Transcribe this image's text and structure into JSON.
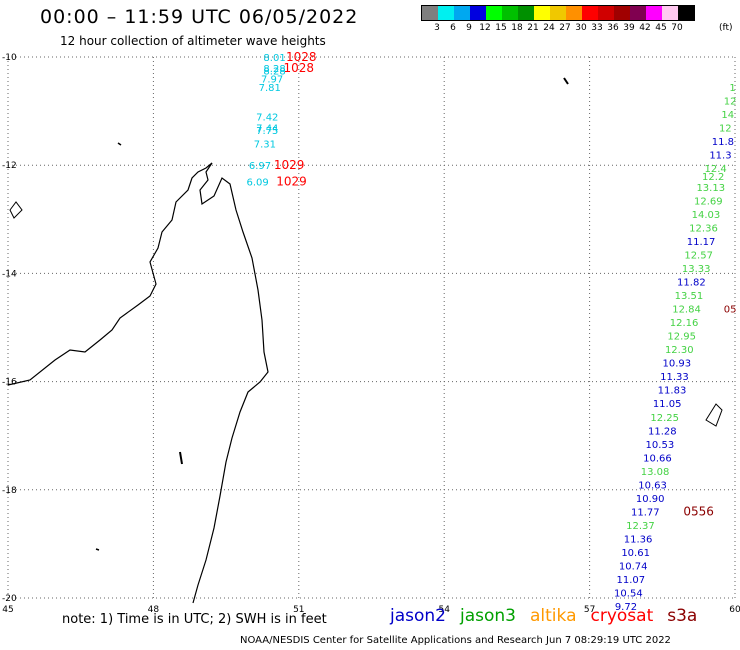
{
  "header": {
    "title": "00:00 – 11:59 UTC 06/05/2022",
    "subtitle": "12 hour collection of altimeter wave heights"
  },
  "legend": {
    "unit": "(ft)",
    "swatches": [
      {
        "color": "#7f7f7f",
        "label": "3"
      },
      {
        "color": "#00f0f0",
        "label": "6"
      },
      {
        "color": "#00a8f0",
        "label": "9"
      },
      {
        "color": "#0000e0",
        "label": "12"
      },
      {
        "color": "#00ff00",
        "label": "15"
      },
      {
        "color": "#00c000",
        "label": "18"
      },
      {
        "color": "#009000",
        "label": "21"
      },
      {
        "color": "#ffff00",
        "label": "24"
      },
      {
        "color": "#f0c800",
        "label": "27"
      },
      {
        "color": "#ff9000",
        "label": "30"
      },
      {
        "color": "#ff0000",
        "label": "33"
      },
      {
        "color": "#d00000",
        "label": "36"
      },
      {
        "color": "#a00000",
        "label": "39"
      },
      {
        "color": "#800050",
        "label": "42"
      },
      {
        "color": "#ff00ff",
        "label": "45"
      },
      {
        "color": "#ffc8f0",
        "label": "70"
      },
      {
        "color": "#000000",
        "label": ""
      }
    ]
  },
  "axes": {
    "lon_ticks": [
      "45",
      "48",
      "51",
      "54",
      "57",
      "60"
    ],
    "lat_ticks": [
      "-10",
      "-12",
      "-14",
      "-16",
      "-18",
      "-20"
    ]
  },
  "colors": {
    "cyan": "#00c8e0",
    "blue": "#0000c8",
    "green": "#44d244",
    "red": "#ff0000",
    "darkred": "#8b0000",
    "orange": "#ff9900"
  },
  "observations": [
    {
      "text": "8.01",
      "lon": 50.5,
      "lat": -10.0,
      "color": "#00c8e0"
    },
    {
      "text": "8.28",
      "lon": 50.5,
      "lat": -10.2,
      "color": "#00c8e0"
    },
    {
      "text": "8.28",
      "lon": 50.5,
      "lat": -10.25,
      "color": "#00c8e0"
    },
    {
      "text": "7.97",
      "lon": 50.45,
      "lat": -10.4,
      "color": "#00c8e0"
    },
    {
      "text": "7.81",
      "lon": 50.4,
      "lat": -10.55,
      "color": "#00c8e0"
    },
    {
      "text": "1028",
      "lon": 51.05,
      "lat": -10.0,
      "color": "#ff0000"
    },
    {
      "text": "1028",
      "lon": 51.0,
      "lat": -10.2,
      "color": "#ff0000"
    },
    {
      "text": "7.42",
      "lon": 50.35,
      "lat": -11.1,
      "color": "#00c8e0"
    },
    {
      "text": "7.44",
      "lon": 50.35,
      "lat": -11.3,
      "color": "#00c8e0"
    },
    {
      "text": "7.75",
      "lon": 50.35,
      "lat": -11.35,
      "color": "#00c8e0"
    },
    {
      "text": "7.31",
      "lon": 50.3,
      "lat": -11.6,
      "color": "#00c8e0"
    },
    {
      "text": "6.97",
      "lon": 50.2,
      "lat": -12.0,
      "color": "#00c8e0"
    },
    {
      "text": "1029",
      "lon": 50.8,
      "lat": -12.0,
      "color": "#ff0000"
    },
    {
      "text": "6.09",
      "lon": 50.15,
      "lat": -12.3,
      "color": "#00c8e0"
    },
    {
      "text": "1029",
      "lon": 50.85,
      "lat": -12.3,
      "color": "#ff0000"
    },
    {
      "text": "1",
      "lon": 59.95,
      "lat": -10.55,
      "color": "#44d244"
    },
    {
      "text": "12",
      "lon": 59.9,
      "lat": -10.8,
      "color": "#44d244"
    },
    {
      "text": "14",
      "lon": 59.85,
      "lat": -11.05,
      "color": "#44d244"
    },
    {
      "text": "12",
      "lon": 59.8,
      "lat": -11.3,
      "color": "#44d244"
    },
    {
      "text": "11.8",
      "lon": 59.75,
      "lat": -11.55,
      "color": "#0000c8"
    },
    {
      "text": "11.3",
      "lon": 59.7,
      "lat": -11.8,
      "color": "#0000c8"
    },
    {
      "text": "12.4",
      "lon": 59.6,
      "lat": -12.05,
      "color": "#44d244"
    },
    {
      "text": "12.2",
      "lon": 59.55,
      "lat": -12.2,
      "color": "#44d244"
    },
    {
      "text": "13.13",
      "lon": 59.5,
      "lat": -12.4,
      "color": "#44d244"
    },
    {
      "text": "12.69",
      "lon": 59.45,
      "lat": -12.65,
      "color": "#44d244"
    },
    {
      "text": "14.03",
      "lon": 59.4,
      "lat": -12.9,
      "color": "#44d244"
    },
    {
      "text": "12.36",
      "lon": 59.35,
      "lat": -13.15,
      "color": "#44d244"
    },
    {
      "text": "11.17",
      "lon": 59.3,
      "lat": -13.4,
      "color": "#0000c8"
    },
    {
      "text": "12.57",
      "lon": 59.25,
      "lat": -13.65,
      "color": "#44d244"
    },
    {
      "text": "13.33",
      "lon": 59.2,
      "lat": -13.9,
      "color": "#44d244"
    },
    {
      "text": "11.82",
      "lon": 59.1,
      "lat": -14.15,
      "color": "#0000c8"
    },
    {
      "text": "13.51",
      "lon": 59.05,
      "lat": -14.4,
      "color": "#44d244"
    },
    {
      "text": "12.84",
      "lon": 59.0,
      "lat": -14.65,
      "color": "#44d244"
    },
    {
      "text": "05",
      "lon": 59.9,
      "lat": -14.65,
      "color": "#8b0000"
    },
    {
      "text": "12.16",
      "lon": 58.95,
      "lat": -14.9,
      "color": "#44d244"
    },
    {
      "text": "12.95",
      "lon": 58.9,
      "lat": -15.15,
      "color": "#44d244"
    },
    {
      "text": "12.30",
      "lon": 58.85,
      "lat": -15.4,
      "color": "#44d244"
    },
    {
      "text": "10.93",
      "lon": 58.8,
      "lat": -15.65,
      "color": "#0000c8"
    },
    {
      "text": "11.33",
      "lon": 58.75,
      "lat": -15.9,
      "color": "#0000c8"
    },
    {
      "text": "11.83",
      "lon": 58.7,
      "lat": -16.15,
      "color": "#0000c8"
    },
    {
      "text": "11.05",
      "lon": 58.6,
      "lat": -16.4,
      "color": "#0000c8"
    },
    {
      "text": "12.25",
      "lon": 58.55,
      "lat": -16.65,
      "color": "#44d244"
    },
    {
      "text": "11.28",
      "lon": 58.5,
      "lat": -16.9,
      "color": "#0000c8"
    },
    {
      "text": "10.53",
      "lon": 58.45,
      "lat": -17.15,
      "color": "#0000c8"
    },
    {
      "text": "10.66",
      "lon": 58.4,
      "lat": -17.4,
      "color": "#0000c8"
    },
    {
      "text": "13.08",
      "lon": 58.35,
      "lat": -17.65,
      "color": "#44d244"
    },
    {
      "text": "10.63",
      "lon": 58.3,
      "lat": -17.9,
      "color": "#0000c8"
    },
    {
      "text": "10.90",
      "lon": 58.25,
      "lat": -18.15,
      "color": "#0000c8"
    },
    {
      "text": "11.77",
      "lon": 58.15,
      "lat": -18.4,
      "color": "#0000c8"
    },
    {
      "text": "0556",
      "lon": 59.25,
      "lat": -18.4,
      "color": "#8b0000"
    },
    {
      "text": "12.37",
      "lon": 58.05,
      "lat": -18.65,
      "color": "#44d244"
    },
    {
      "text": "11.36",
      "lon": 58.0,
      "lat": -18.9,
      "color": "#0000c8"
    },
    {
      "text": "10.61",
      "lon": 57.95,
      "lat": -19.15,
      "color": "#0000c8"
    },
    {
      "text": "10.74",
      "lon": 57.9,
      "lat": -19.4,
      "color": "#0000c8"
    },
    {
      "text": "11.07",
      "lon": 57.85,
      "lat": -19.65,
      "color": "#0000c8"
    },
    {
      "text": "10.54",
      "lon": 57.8,
      "lat": -19.9,
      "color": "#0000c8"
    },
    {
      "text": "9.72",
      "lon": 57.75,
      "lat": -20.15,
      "color": "#0000c8"
    }
  ],
  "footer": {
    "note": "note: 1) Time is in UTC; 2) SWH is in feet",
    "satellites": [
      {
        "name": "jason2",
        "color": "#0000c8"
      },
      {
        "name": "jason3",
        "color": "#00a000"
      },
      {
        "name": "altika",
        "color": "#ff9900"
      },
      {
        "name": "cryosat",
        "color": "#ff0000"
      },
      {
        "name": "s3a",
        "color": "#8b0000"
      }
    ],
    "credit": "NOAA/NESDIS Center for Satellite Applications and Research   Jun  7 08:29:19 UTC 2022"
  }
}
